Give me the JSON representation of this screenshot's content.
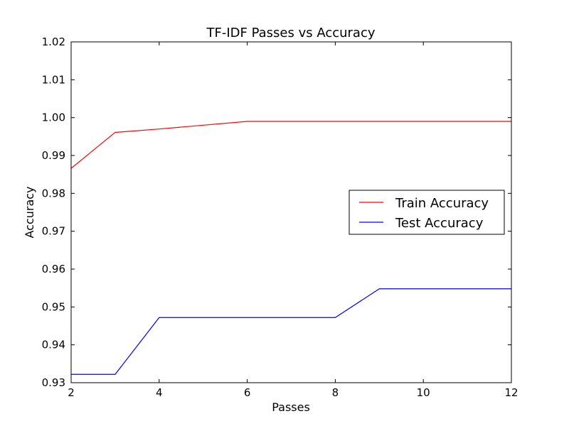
{
  "chart_data": {
    "type": "line",
    "title": "TF-IDF Passes vs Accuracy",
    "xlabel": "Passes",
    "ylabel": "Accuracy",
    "xlim": [
      2,
      12
    ],
    "ylim": [
      0.93,
      1.02
    ],
    "xticks": [
      2,
      4,
      6,
      8,
      10,
      12
    ],
    "xtick_labels": [
      "2",
      "4",
      "6",
      "8",
      "10",
      "12"
    ],
    "yticks": [
      0.93,
      0.94,
      0.95,
      0.96,
      0.97,
      0.98,
      0.99,
      1.0,
      1.01,
      1.02
    ],
    "ytick_labels": [
      "0.93",
      "0.94",
      "0.95",
      "0.96",
      "0.97",
      "0.98",
      "0.99",
      "1.00",
      "1.01",
      "1.02"
    ],
    "grid": false,
    "legend_position": "center-right",
    "x": [
      2,
      3,
      4,
      5,
      6,
      7,
      8,
      9,
      10,
      11,
      12
    ],
    "series": [
      {
        "name": "Train Accuracy",
        "color": "#ff0000",
        "values": [
          0.9866,
          0.9961,
          0.997,
          0.998,
          0.999,
          0.999,
          0.999,
          0.999,
          0.999,
          0.999,
          0.999
        ]
      },
      {
        "name": "Test Accuracy",
        "color": "#0000ff",
        "values": [
          0.9322,
          0.9322,
          0.9472,
          0.9472,
          0.9472,
          0.9472,
          0.9472,
          0.9548,
          0.9548,
          0.9548,
          0.9548
        ]
      }
    ]
  }
}
